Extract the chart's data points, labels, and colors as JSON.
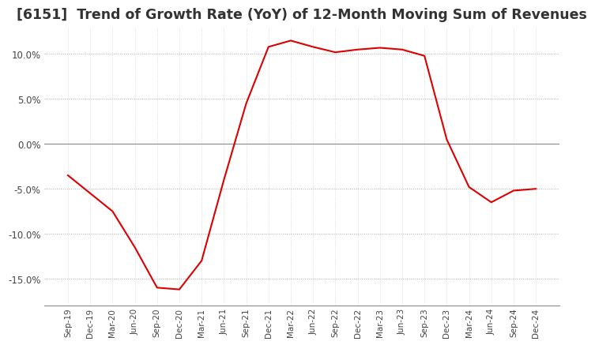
{
  "title": "[6151]  Trend of Growth Rate (YoY) of 12-Month Moving Sum of Revenues",
  "x_labels": [
    "Sep-19",
    "Dec-19",
    "Mar-20",
    "Jun-20",
    "Sep-20",
    "Dec-20",
    "Mar-21",
    "Jun-21",
    "Sep-21",
    "Dec-21",
    "Mar-22",
    "Jun-22",
    "Sep-22",
    "Dec-22",
    "Mar-23",
    "Jun-23",
    "Sep-23",
    "Dec-23",
    "Mar-24",
    "Jun-24",
    "Sep-24",
    "Dec-24"
  ],
  "y_values": [
    -3.5,
    -5.5,
    -7.5,
    -11.5,
    -16.0,
    -16.2,
    -13.0,
    -4.0,
    4.5,
    10.8,
    11.5,
    10.8,
    10.2,
    10.5,
    10.7,
    10.5,
    9.8,
    0.5,
    -4.8,
    -6.5,
    -5.2,
    -5.0
  ],
  "line_color": "#dd0000",
  "background_color": "#ffffff",
  "grid_color_major": "#aaaaaa",
  "grid_color_minor": "#cccccc",
  "zero_line_color": "#888888",
  "title_color": "#333333",
  "ylim": [
    -18,
    13
  ],
  "yticks": [
    -15,
    -10,
    -5,
    0,
    5,
    10
  ],
  "title_fontsize": 12.5
}
